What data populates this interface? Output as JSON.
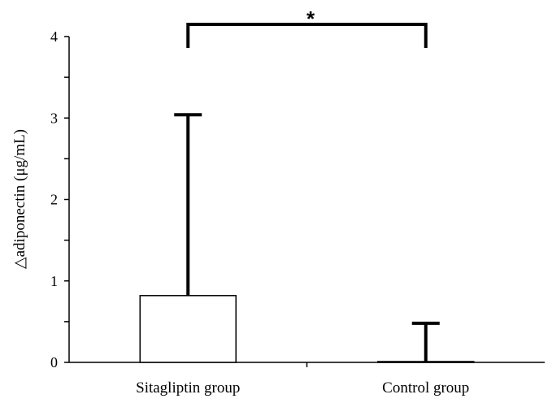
{
  "chart_data": {
    "type": "bar",
    "categories": [
      "Sitagliptin group",
      "Control group"
    ],
    "values": [
      0.82,
      0.01
    ],
    "error_upper": [
      3.04,
      0.48
    ],
    "ylabel": "△adiponectin (μg/mL)",
    "xlabel": "",
    "ylim": [
      0,
      4
    ],
    "yticks": [
      "0",
      "1",
      "2",
      "3",
      "4"
    ],
    "annotation": "*",
    "grid": false,
    "bar_color": "#ffffff",
    "edge_color": "#000000"
  }
}
